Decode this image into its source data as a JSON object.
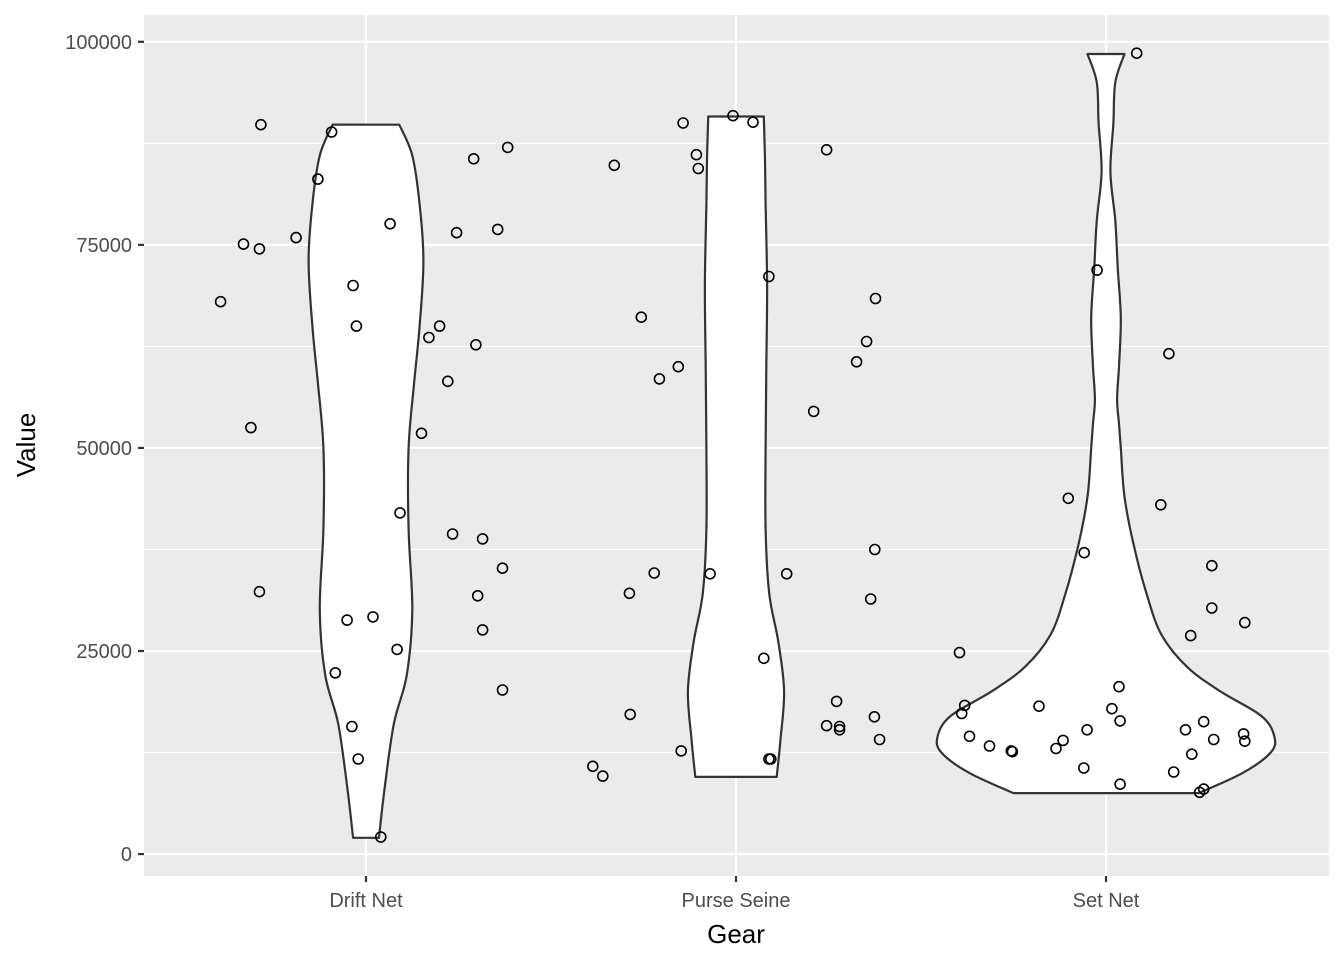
{
  "chart_data": {
    "type": "violin",
    "xlabel": "Gear",
    "ylabel": "Value",
    "categories": [
      "Drift Net",
      "Purse Seine",
      "Set Net"
    ],
    "ylim": [
      -2700,
      103300
    ],
    "yticks": [
      0,
      25000,
      50000,
      75000,
      100000
    ],
    "ytick_labels": [
      "0",
      "25000",
      "50000",
      "75000",
      "100000"
    ],
    "grid": true,
    "jitter_offset_unit": "category width fraction",
    "violins": [
      {
        "category": "Drift Net",
        "profile": [
          {
            "y": 2000,
            "w": 0.035
          },
          {
            "y": 8000,
            "w": 0.05
          },
          {
            "y": 16000,
            "w": 0.075
          },
          {
            "y": 22000,
            "w": 0.11
          },
          {
            "y": 30000,
            "w": 0.125
          },
          {
            "y": 40000,
            "w": 0.115
          },
          {
            "y": 50000,
            "w": 0.115
          },
          {
            "y": 58000,
            "w": 0.13
          },
          {
            "y": 65000,
            "w": 0.145
          },
          {
            "y": 73000,
            "w": 0.155
          },
          {
            "y": 80000,
            "w": 0.145
          },
          {
            "y": 86000,
            "w": 0.125
          },
          {
            "y": 89800,
            "w": 0.09
          }
        ]
      },
      {
        "category": "Purse Seine",
        "profile": [
          {
            "y": 9500,
            "w": 0.11
          },
          {
            "y": 14000,
            "w": 0.12
          },
          {
            "y": 20000,
            "w": 0.13
          },
          {
            "y": 26000,
            "w": 0.115
          },
          {
            "y": 32000,
            "w": 0.09
          },
          {
            "y": 40000,
            "w": 0.08
          },
          {
            "y": 50000,
            "w": 0.08
          },
          {
            "y": 60000,
            "w": 0.082
          },
          {
            "y": 70000,
            "w": 0.084
          },
          {
            "y": 80000,
            "w": 0.08
          },
          {
            "y": 86000,
            "w": 0.078
          },
          {
            "y": 90800,
            "w": 0.075
          }
        ]
      },
      {
        "category": "Set Net",
        "profile": [
          {
            "y": 7500,
            "w": 0.25
          },
          {
            "y": 10000,
            "w": 0.37
          },
          {
            "y": 12500,
            "w": 0.445
          },
          {
            "y": 14500,
            "w": 0.455
          },
          {
            "y": 17000,
            "w": 0.42
          },
          {
            "y": 20000,
            "w": 0.31
          },
          {
            "y": 23000,
            "w": 0.22
          },
          {
            "y": 27000,
            "w": 0.15
          },
          {
            "y": 32000,
            "w": 0.11
          },
          {
            "y": 38000,
            "w": 0.075
          },
          {
            "y": 44000,
            "w": 0.05
          },
          {
            "y": 50000,
            "w": 0.04
          },
          {
            "y": 53000,
            "w": 0.035
          },
          {
            "y": 56000,
            "w": 0.03
          },
          {
            "y": 60000,
            "w": 0.035
          },
          {
            "y": 66000,
            "w": 0.04
          },
          {
            "y": 72000,
            "w": 0.032
          },
          {
            "y": 78000,
            "w": 0.025
          },
          {
            "y": 84000,
            "w": 0.012
          },
          {
            "y": 90000,
            "w": 0.02
          },
          {
            "y": 95000,
            "w": 0.025
          },
          {
            "y": 98500,
            "w": 0.05
          }
        ]
      }
    ],
    "points": [
      {
        "cat": 0,
        "dx": -0.393,
        "y": 68000
      },
      {
        "cat": 0,
        "dx": -0.331,
        "y": 75100
      },
      {
        "cat": 0,
        "dx": -0.311,
        "y": 52500
      },
      {
        "cat": 0,
        "dx": -0.288,
        "y": 74500
      },
      {
        "cat": 0,
        "dx": -0.284,
        "y": 89800
      },
      {
        "cat": 0,
        "dx": -0.288,
        "y": 32300
      },
      {
        "cat": 0,
        "dx": -0.189,
        "y": 75900
      },
      {
        "cat": 0,
        "dx": -0.13,
        "y": 83100
      },
      {
        "cat": 0,
        "dx": -0.093,
        "y": 88900
      },
      {
        "cat": 0,
        "dx": -0.083,
        "y": 22300
      },
      {
        "cat": 0,
        "dx": -0.051,
        "y": 28800
      },
      {
        "cat": 0,
        "dx": -0.038,
        "y": 15700
      },
      {
        "cat": 0,
        "dx": -0.035,
        "y": 70000
      },
      {
        "cat": 0,
        "dx": -0.026,
        "y": 65000
      },
      {
        "cat": 0,
        "dx": -0.021,
        "y": 11700
      },
      {
        "cat": 0,
        "dx": 0.04,
        "y": 2100
      },
      {
        "cat": 0,
        "dx": 0.019,
        "y": 29200
      },
      {
        "cat": 0,
        "dx": 0.065,
        "y": 77600
      },
      {
        "cat": 0,
        "dx": 0.084,
        "y": 25200
      },
      {
        "cat": 0,
        "dx": 0.092,
        "y": 42000
      },
      {
        "cat": 0,
        "dx": 0.15,
        "y": 51800
      },
      {
        "cat": 0,
        "dx": 0.17,
        "y": 63600
      },
      {
        "cat": 0,
        "dx": 0.199,
        "y": 65000
      },
      {
        "cat": 0,
        "dx": 0.221,
        "y": 58200
      },
      {
        "cat": 0,
        "dx": 0.234,
        "y": 39400
      },
      {
        "cat": 0,
        "dx": 0.245,
        "y": 76500
      },
      {
        "cat": 0,
        "dx": 0.291,
        "y": 85600
      },
      {
        "cat": 0,
        "dx": 0.297,
        "y": 62700
      },
      {
        "cat": 0,
        "dx": 0.302,
        "y": 31800
      },
      {
        "cat": 0,
        "dx": 0.315,
        "y": 38800
      },
      {
        "cat": 0,
        "dx": 0.315,
        "y": 27600
      },
      {
        "cat": 0,
        "dx": 0.356,
        "y": 76900
      },
      {
        "cat": 0,
        "dx": 0.369,
        "y": 35200
      },
      {
        "cat": 0,
        "dx": 0.369,
        "y": 20200
      },
      {
        "cat": 0,
        "dx": 0.383,
        "y": 87000
      },
      {
        "cat": 1,
        "dx": -0.387,
        "y": 10800
      },
      {
        "cat": 1,
        "dx": -0.36,
        "y": 9600
      },
      {
        "cat": 1,
        "dx": -0.329,
        "y": 84800
      },
      {
        "cat": 1,
        "dx": -0.288,
        "y": 32100
      },
      {
        "cat": 1,
        "dx": -0.286,
        "y": 17200
      },
      {
        "cat": 1,
        "dx": -0.256,
        "y": 66100
      },
      {
        "cat": 1,
        "dx": -0.221,
        "y": 34600
      },
      {
        "cat": 1,
        "dx": -0.207,
        "y": 58500
      },
      {
        "cat": 1,
        "dx": -0.156,
        "y": 60000
      },
      {
        "cat": 1,
        "dx": -0.148,
        "y": 12700
      },
      {
        "cat": 1,
        "dx": -0.143,
        "y": 90000
      },
      {
        "cat": 1,
        "dx": -0.107,
        "y": 86100
      },
      {
        "cat": 1,
        "dx": -0.102,
        "y": 84400
      },
      {
        "cat": 1,
        "dx": -0.07,
        "y": 34500
      },
      {
        "cat": 1,
        "dx": -0.008,
        "y": 90900
      },
      {
        "cat": 1,
        "dx": 0.046,
        "y": 90100
      },
      {
        "cat": 1,
        "dx": 0.075,
        "y": 24100
      },
      {
        "cat": 1,
        "dx": 0.089,
        "y": 71100
      },
      {
        "cat": 1,
        "dx": 0.089,
        "y": 11700
      },
      {
        "cat": 1,
        "dx": 0.094,
        "y": 11700
      },
      {
        "cat": 1,
        "dx": 0.137,
        "y": 34500
      },
      {
        "cat": 1,
        "dx": 0.21,
        "y": 54500
      },
      {
        "cat": 1,
        "dx": 0.245,
        "y": 86700
      },
      {
        "cat": 1,
        "dx": 0.245,
        "y": 15800
      },
      {
        "cat": 1,
        "dx": 0.272,
        "y": 18800
      },
      {
        "cat": 1,
        "dx": 0.28,
        "y": 15700
      },
      {
        "cat": 1,
        "dx": 0.28,
        "y": 15300
      },
      {
        "cat": 1,
        "dx": 0.326,
        "y": 60600
      },
      {
        "cat": 1,
        "dx": 0.353,
        "y": 63100
      },
      {
        "cat": 1,
        "dx": 0.364,
        "y": 31400
      },
      {
        "cat": 1,
        "dx": 0.375,
        "y": 37500
      },
      {
        "cat": 1,
        "dx": 0.377,
        "y": 68400
      },
      {
        "cat": 1,
        "dx": 0.374,
        "y": 16900
      },
      {
        "cat": 1,
        "dx": 0.388,
        "y": 14100
      },
      {
        "cat": 2,
        "dx": -0.396,
        "y": 24800
      },
      {
        "cat": 2,
        "dx": -0.39,
        "y": 17300
      },
      {
        "cat": 2,
        "dx": -0.382,
        "y": 18300
      },
      {
        "cat": 2,
        "dx": -0.369,
        "y": 14500
      },
      {
        "cat": 2,
        "dx": -0.315,
        "y": 13300
      },
      {
        "cat": 2,
        "dx": -0.256,
        "y": 12700
      },
      {
        "cat": 2,
        "dx": -0.253,
        "y": 12600
      },
      {
        "cat": 2,
        "dx": -0.181,
        "y": 18200
      },
      {
        "cat": 2,
        "dx": -0.135,
        "y": 13000
      },
      {
        "cat": 2,
        "dx": -0.116,
        "y": 14000
      },
      {
        "cat": 2,
        "dx": -0.102,
        "y": 43800
      },
      {
        "cat": 2,
        "dx": -0.06,
        "y": 10600
      },
      {
        "cat": 2,
        "dx": -0.059,
        "y": 37100
      },
      {
        "cat": 2,
        "dx": -0.051,
        "y": 15300
      },
      {
        "cat": 2,
        "dx": -0.024,
        "y": 71900
      },
      {
        "cat": 2,
        "dx": 0.016,
        "y": 17900
      },
      {
        "cat": 2,
        "dx": 0.035,
        "y": 20600
      },
      {
        "cat": 2,
        "dx": 0.038,
        "y": 16400
      },
      {
        "cat": 2,
        "dx": 0.038,
        "y": 8600
      },
      {
        "cat": 2,
        "dx": 0.083,
        "y": 98600
      },
      {
        "cat": 2,
        "dx": 0.148,
        "y": 43000
      },
      {
        "cat": 2,
        "dx": 0.17,
        "y": 61600
      },
      {
        "cat": 2,
        "dx": 0.183,
        "y": 10100
      },
      {
        "cat": 2,
        "dx": 0.215,
        "y": 15300
      },
      {
        "cat": 2,
        "dx": 0.229,
        "y": 26900
      },
      {
        "cat": 2,
        "dx": 0.232,
        "y": 12300
      },
      {
        "cat": 2,
        "dx": 0.253,
        "y": 7600
      },
      {
        "cat": 2,
        "dx": 0.264,
        "y": 8000
      },
      {
        "cat": 2,
        "dx": 0.264,
        "y": 16300
      },
      {
        "cat": 2,
        "dx": 0.286,
        "y": 35500
      },
      {
        "cat": 2,
        "dx": 0.286,
        "y": 30300
      },
      {
        "cat": 2,
        "dx": 0.291,
        "y": 14100
      },
      {
        "cat": 2,
        "dx": 0.372,
        "y": 14800
      },
      {
        "cat": 2,
        "dx": 0.375,
        "y": 13900
      },
      {
        "cat": 2,
        "dx": 0.375,
        "y": 28500
      }
    ]
  }
}
